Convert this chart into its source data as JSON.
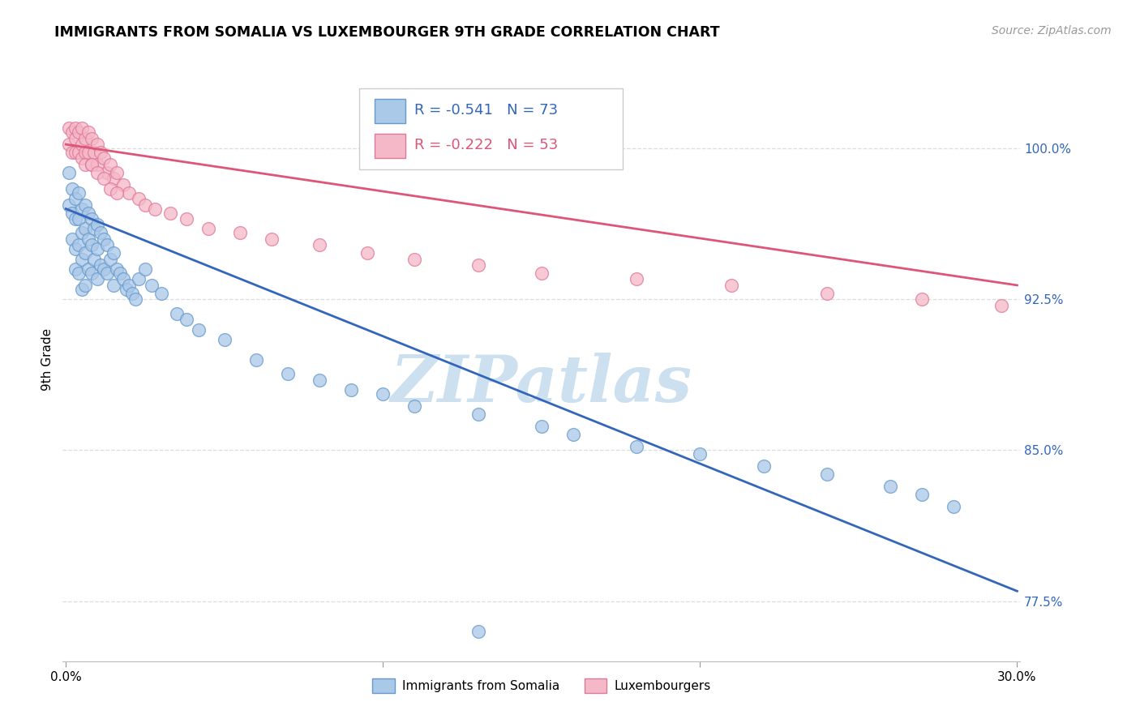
{
  "title": "IMMIGRANTS FROM SOMALIA VS LUXEMBOURGER 9TH GRADE CORRELATION CHART",
  "source": "Source: ZipAtlas.com",
  "ylabel": "9th Grade",
  "ylabel_ticks": [
    "77.5%",
    "85.0%",
    "92.5%",
    "100.0%"
  ],
  "ylabel_vals": [
    0.775,
    0.85,
    0.925,
    1.0
  ],
  "xlim": [
    -0.001,
    0.301
  ],
  "ylim": [
    0.745,
    1.045
  ],
  "blue_r": -0.541,
  "blue_n": 73,
  "pink_r": -0.222,
  "pink_n": 53,
  "blue_scatter_color": "#aac8e8",
  "blue_edge_color": "#6699cc",
  "pink_scatter_color": "#f5b8c8",
  "pink_edge_color": "#e07898",
  "blue_line_color": "#3366bb",
  "pink_line_color": "#dd5577",
  "grid_color": "#dddddd",
  "watermark_color": "#cce0f0",
  "blue_x": [
    0.001,
    0.001,
    0.002,
    0.002,
    0.002,
    0.003,
    0.003,
    0.003,
    0.003,
    0.004,
    0.004,
    0.004,
    0.004,
    0.005,
    0.005,
    0.005,
    0.005,
    0.006,
    0.006,
    0.006,
    0.006,
    0.007,
    0.007,
    0.007,
    0.008,
    0.008,
    0.008,
    0.009,
    0.009,
    0.01,
    0.01,
    0.01,
    0.011,
    0.011,
    0.012,
    0.012,
    0.013,
    0.013,
    0.014,
    0.015,
    0.015,
    0.016,
    0.017,
    0.018,
    0.019,
    0.02,
    0.021,
    0.022,
    0.023,
    0.025,
    0.027,
    0.03,
    0.035,
    0.038,
    0.042,
    0.05,
    0.06,
    0.07,
    0.08,
    0.09,
    0.1,
    0.11,
    0.13,
    0.15,
    0.16,
    0.18,
    0.2,
    0.22,
    0.24,
    0.26,
    0.27,
    0.28,
    0.13
  ],
  "blue_y": [
    0.988,
    0.972,
    0.98,
    0.968,
    0.955,
    0.975,
    0.965,
    0.95,
    0.94,
    0.978,
    0.965,
    0.952,
    0.938,
    0.97,
    0.958,
    0.945,
    0.93,
    0.972,
    0.96,
    0.948,
    0.932,
    0.968,
    0.955,
    0.94,
    0.965,
    0.952,
    0.938,
    0.96,
    0.945,
    0.962,
    0.95,
    0.935,
    0.958,
    0.942,
    0.955,
    0.94,
    0.952,
    0.938,
    0.945,
    0.948,
    0.932,
    0.94,
    0.938,
    0.935,
    0.93,
    0.932,
    0.928,
    0.925,
    0.935,
    0.94,
    0.932,
    0.928,
    0.918,
    0.915,
    0.91,
    0.905,
    0.895,
    0.888,
    0.885,
    0.88,
    0.878,
    0.872,
    0.868,
    0.862,
    0.858,
    0.852,
    0.848,
    0.842,
    0.838,
    0.832,
    0.828,
    0.822,
    0.76
  ],
  "pink_x": [
    0.001,
    0.001,
    0.002,
    0.002,
    0.003,
    0.003,
    0.003,
    0.004,
    0.004,
    0.005,
    0.005,
    0.005,
    0.006,
    0.006,
    0.006,
    0.007,
    0.007,
    0.008,
    0.008,
    0.009,
    0.01,
    0.01,
    0.011,
    0.012,
    0.013,
    0.014,
    0.015,
    0.016,
    0.018,
    0.02,
    0.023,
    0.025,
    0.028,
    0.033,
    0.038,
    0.045,
    0.055,
    0.065,
    0.08,
    0.095,
    0.11,
    0.13,
    0.15,
    0.18,
    0.21,
    0.24,
    0.27,
    0.295,
    0.008,
    0.01,
    0.012,
    0.014,
    0.016
  ],
  "pink_y": [
    1.01,
    1.002,
    1.008,
    0.998,
    1.01,
    1.005,
    0.998,
    1.008,
    0.998,
    1.01,
    1.002,
    0.995,
    1.005,
    0.998,
    0.992,
    1.008,
    0.998,
    1.005,
    0.992,
    0.998,
    1.002,
    0.992,
    0.998,
    0.995,
    0.988,
    0.992,
    0.985,
    0.988,
    0.982,
    0.978,
    0.975,
    0.972,
    0.97,
    0.968,
    0.965,
    0.96,
    0.958,
    0.955,
    0.952,
    0.948,
    0.945,
    0.942,
    0.938,
    0.935,
    0.932,
    0.928,
    0.925,
    0.922,
    0.992,
    0.988,
    0.985,
    0.98,
    0.978
  ]
}
